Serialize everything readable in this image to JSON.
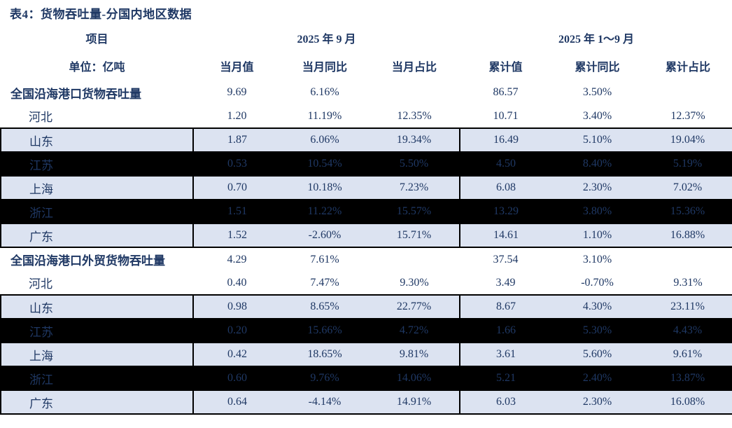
{
  "title": "表4：货物吞吐量-分国内地区数据",
  "colors": {
    "text": "#1f3864",
    "background": "#ffffff",
    "stripe": "#dce3f1",
    "dark_row": "#000000",
    "border": "#000000"
  },
  "header": {
    "item_label": "项目",
    "unit_label": "单位：亿吨",
    "group1": "2025 年 9 月",
    "group2": "2025 年 1～9 月",
    "columns": [
      "当月值",
      "当月同比",
      "当月占比",
      "累计值",
      "累计同比",
      "累计占比"
    ]
  },
  "rows": [
    {
      "label": "全国沿海港口货物吞吐量",
      "type": "section",
      "style": "plain",
      "values": [
        "9.69",
        "6.16%",
        "",
        "86.57",
        "3.50%",
        ""
      ]
    },
    {
      "label": "河北",
      "type": "province",
      "style": "plain",
      "values": [
        "1.20",
        "11.19%",
        "12.35%",
        "10.71",
        "3.40%",
        "12.37%"
      ]
    },
    {
      "label": "山东",
      "type": "province",
      "style": "stripe",
      "values": [
        "1.87",
        "6.06%",
        "19.34%",
        "16.49",
        "5.10%",
        "19.04%"
      ]
    },
    {
      "label": "江苏",
      "type": "province",
      "style": "dark",
      "values": [
        "0.53",
        "10.54%",
        "5.50%",
        "4.50",
        "8.40%",
        "5.19%"
      ]
    },
    {
      "label": "上海",
      "type": "province",
      "style": "stripe",
      "values": [
        "0.70",
        "10.18%",
        "7.23%",
        "6.08",
        "2.30%",
        "7.02%"
      ]
    },
    {
      "label": "浙江",
      "type": "province",
      "style": "dark",
      "values": [
        "1.51",
        "11.22%",
        "15.57%",
        "13.29",
        "3.80%",
        "15.36%"
      ]
    },
    {
      "label": "广东",
      "type": "province",
      "style": "stripe",
      "values": [
        "1.52",
        "-2.60%",
        "15.71%",
        "14.61",
        "1.10%",
        "16.88%"
      ]
    },
    {
      "label": "全国沿海港口外贸货物吞吐量",
      "type": "section",
      "style": "plain",
      "values": [
        "4.29",
        "7.61%",
        "",
        "37.54",
        "3.10%",
        ""
      ]
    },
    {
      "label": "河北",
      "type": "province",
      "style": "plain",
      "values": [
        "0.40",
        "7.47%",
        "9.30%",
        "3.49",
        "-0.70%",
        "9.31%"
      ]
    },
    {
      "label": "山东",
      "type": "province",
      "style": "stripe",
      "values": [
        "0.98",
        "8.65%",
        "22.77%",
        "8.67",
        "4.30%",
        "23.11%"
      ]
    },
    {
      "label": "江苏",
      "type": "province",
      "style": "dark",
      "values": [
        "0.20",
        "15.66%",
        "4.72%",
        "1.66",
        "5.30%",
        "4.43%"
      ]
    },
    {
      "label": "上海",
      "type": "province",
      "style": "stripe",
      "values": [
        "0.42",
        "18.65%",
        "9.81%",
        "3.61",
        "5.60%",
        "9.61%"
      ]
    },
    {
      "label": "浙江",
      "type": "province",
      "style": "dark",
      "values": [
        "0.60",
        "9.76%",
        "14.06%",
        "5.21",
        "2.40%",
        "13.87%"
      ]
    },
    {
      "label": "广东",
      "type": "province",
      "style": "stripe",
      "values": [
        "0.64",
        "-4.14%",
        "14.91%",
        "6.03",
        "2.30%",
        "16.08%"
      ]
    }
  ]
}
